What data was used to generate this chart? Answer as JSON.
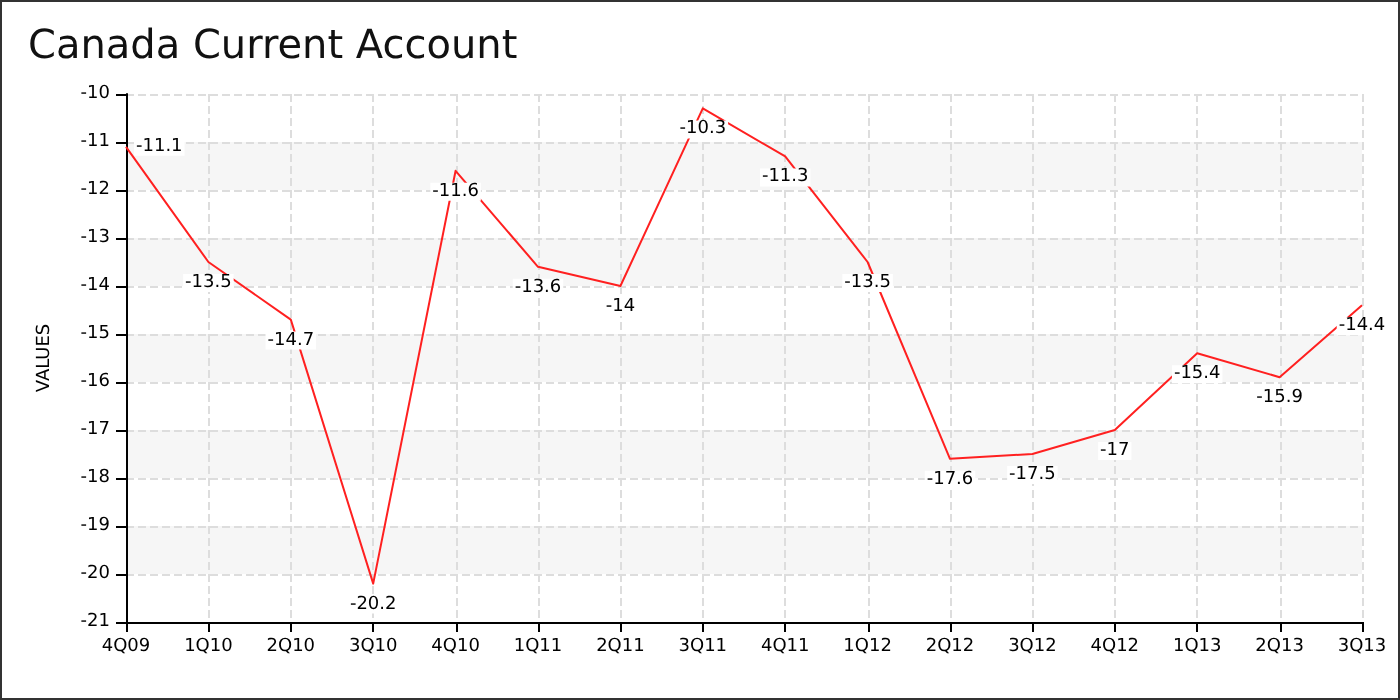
{
  "chart_data": {
    "type": "line",
    "title": "Canada Current Account",
    "ylabel": "VALUES",
    "categories": [
      "4Q09",
      "1Q10",
      "2Q10",
      "3Q10",
      "4Q10",
      "1Q11",
      "2Q11",
      "3Q11",
      "4Q11",
      "1Q12",
      "2Q12",
      "3Q12",
      "4Q12",
      "1Q13",
      "2Q13",
      "3Q13"
    ],
    "series": [
      {
        "color": "#ff2020",
        "values": [
          -11.1,
          -13.5,
          -14.7,
          -20.2,
          -11.6,
          -13.6,
          -14,
          -10.3,
          -11.3,
          -13.5,
          -17.6,
          -17.5,
          -17,
          -15.4,
          -15.9,
          -14.4
        ]
      }
    ],
    "ylim": [
      -21,
      -10
    ],
    "yticks": [
      -21,
      -20,
      -19,
      -18,
      -17,
      -16,
      -15,
      -14,
      -13,
      -12,
      -11,
      -10
    ],
    "grid": true,
    "data_labels": true,
    "marker": "none",
    "line_style": "solid"
  }
}
